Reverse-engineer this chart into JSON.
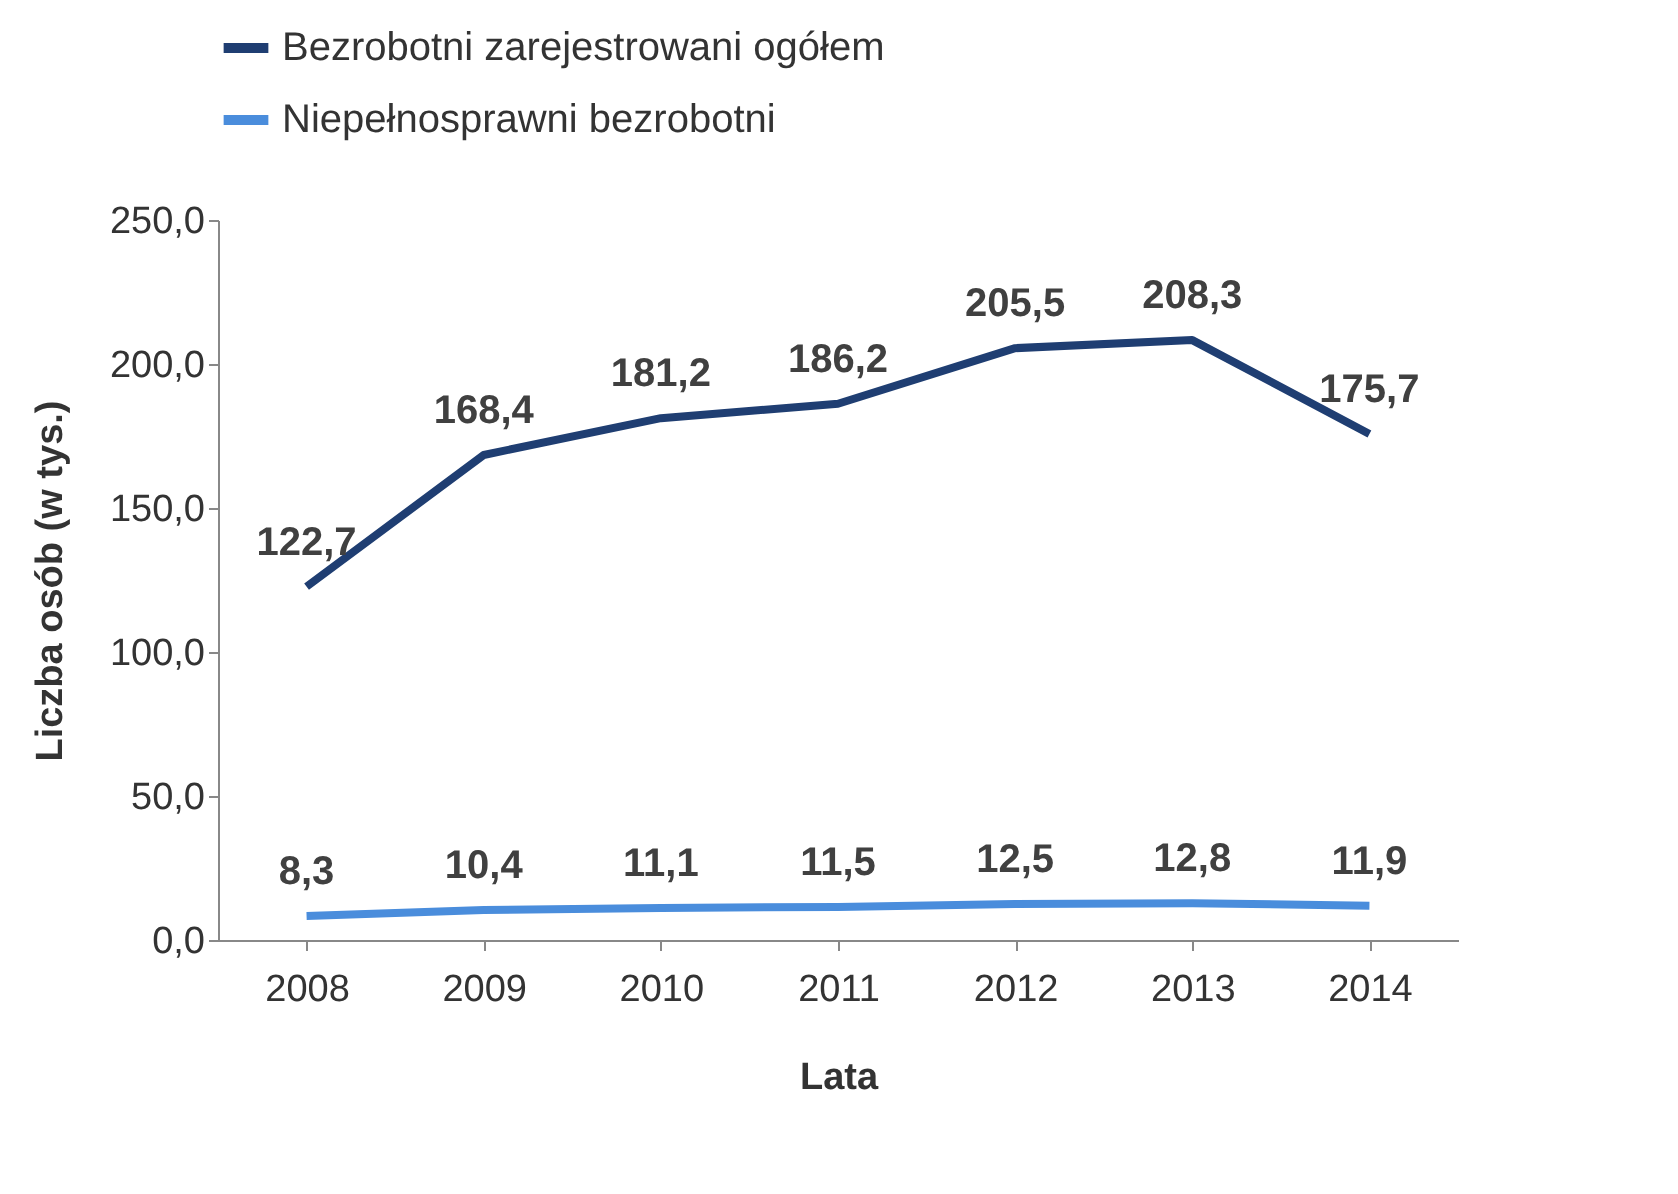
{
  "chart_data": {
    "type": "line",
    "xlabel": "Lata",
    "ylabel": "Liczba osób (w tys.)",
    "categories": [
      "2008",
      "2009",
      "2010",
      "2011",
      "2012",
      "2013",
      "2014"
    ],
    "series": [
      {
        "name": "Bezrobotni zarejestrowani ogółem",
        "color": "#1f3e72",
        "values": [
          122.7,
          168.4,
          181.2,
          186.2,
          205.5,
          208.3,
          175.7
        ],
        "value_labels": [
          "122,7",
          "168,4",
          "181,2",
          "186,2",
          "205,5",
          "208,3",
          "175,7"
        ]
      },
      {
        "name": "Niepełnosprawni bezrobotni",
        "color": "#4a8ddc",
        "values": [
          8.3,
          10.4,
          11.1,
          11.5,
          12.5,
          12.8,
          11.9
        ],
        "value_labels": [
          "8,3",
          "10,4",
          "11,1",
          "11,5",
          "12,5",
          "12,8",
          "11,9"
        ]
      }
    ],
    "ylim": [
      0,
      250
    ],
    "yticks": [
      {
        "value": 0,
        "label": "0,0"
      },
      {
        "value": 50,
        "label": "50,0"
      },
      {
        "value": 100,
        "label": "100,0"
      },
      {
        "value": 150,
        "label": "150,0"
      },
      {
        "value": 200,
        "label": "200,0"
      },
      {
        "value": 250,
        "label": "250,0"
      }
    ],
    "legend": "top",
    "line_style": "solid"
  }
}
